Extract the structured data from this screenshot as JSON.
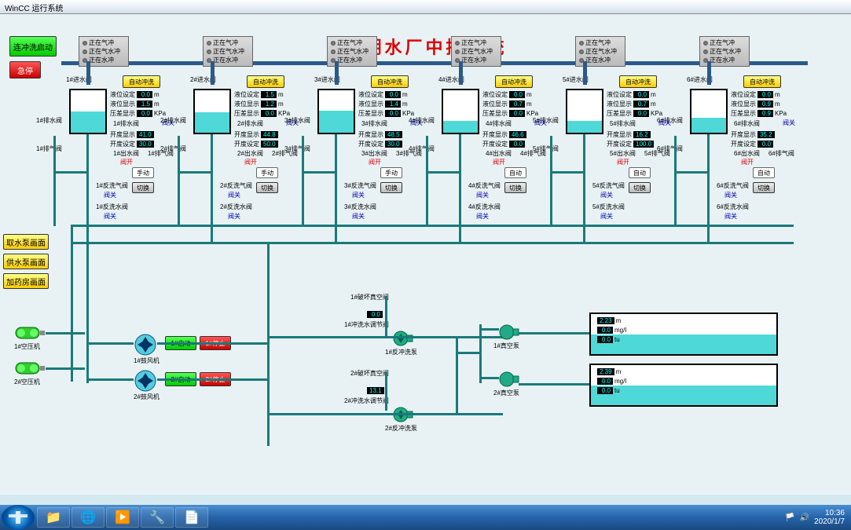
{
  "window": {
    "title": "WinCC 运行系统"
  },
  "main_title": "明湖水厂中控系统",
  "ctrl": {
    "start_flush": "连冲洗启动",
    "estop": "急停",
    "pump_screen1": "取水泵画面",
    "pump_screen2": "供水泵画面",
    "dosing_screen": "加药房画面"
  },
  "shared": {
    "auto_flush": "自动冲洗",
    "switch": "切换",
    "manual": "手动",
    "auto": "自动",
    "valve_close": "阀关",
    "valve_open": "阀开",
    "start": "启动",
    "stop": "停止"
  },
  "status_labels": [
    "正在气冲",
    "正在气水冲",
    "正在水冲"
  ],
  "filters": [
    {
      "n": "1",
      "level_set": "0.0",
      "level_disp": "1.5",
      "press": "0.0",
      "open_disp": "41.0",
      "open_set": "30.0",
      "tank_fill": 50
    },
    {
      "n": "2",
      "level_set": "1.5",
      "level_disp": "1.2",
      "press": "0.0",
      "open_disp": "44.8",
      "open_set": "50.0",
      "tank_fill": 48
    },
    {
      "n": "3",
      "level_set": "0.0",
      "level_disp": "1.4",
      "press": "0.0",
      "open_disp": "48.5",
      "open_set": "30.0",
      "tank_fill": 52
    },
    {
      "n": "4",
      "level_set": "0.0",
      "level_disp": "0.7",
      "press": "0.0",
      "open_disp": "46.6",
      "open_set": "0.0",
      "tank_fill": 28
    },
    {
      "n": "5",
      "level_set": "0.0",
      "level_disp": "0.7",
      "press": "0.0",
      "open_disp": "16.2",
      "open_set": "100.0",
      "tank_fill": 28
    },
    {
      "n": "6",
      "level_set": "0.0",
      "level_disp": "0.9",
      "press": "0.9",
      "open_disp": "35.2",
      "open_set": "0.0",
      "tank_fill": 35
    }
  ],
  "val_labels": {
    "level_set": "液位设定",
    "level_disp": "液位显示",
    "press": "压差显示",
    "open_disp": "开度显示",
    "open_set": "开度设定",
    "u_m": "m",
    "u_kpa": "KPa"
  },
  "compressors": [
    {
      "label": "1#空压机"
    },
    {
      "label": "2#空压机"
    }
  ],
  "blowers": [
    {
      "label": "1#鼓风机",
      "start": "1#启动",
      "stop": "1#停止"
    },
    {
      "label": "2#鼓风机",
      "start": "2#启动",
      "stop": "2#停止"
    }
  ],
  "backwash": {
    "vac1": "1#破坏真空阀",
    "vac2": "2#破坏真空阀",
    "reg1": "1#冲洗水调节阀",
    "reg2": "2#冲洗水调节阀",
    "val1": "0.0",
    "val2": "13.1",
    "pump1": "1#反冲洗泵",
    "pump2": "2#反冲洗泵",
    "vpump1": "1#真空泵",
    "vpump2": "2#真空泵"
  },
  "clearwell": {
    "v1": "2.23",
    "u1": "m",
    "v2": "0.0",
    "u2": "mg/l",
    "v3": "0.0",
    "u3": "tu",
    "v4": "2.39",
    "u4": "m",
    "v5": "0.0",
    "u5": "mg/l",
    "v6": "0.0",
    "u6": "tu",
    "fill1": 50,
    "fill2": 50
  },
  "taskbar": {
    "time": "10:36",
    "date": "2020/1/7"
  }
}
